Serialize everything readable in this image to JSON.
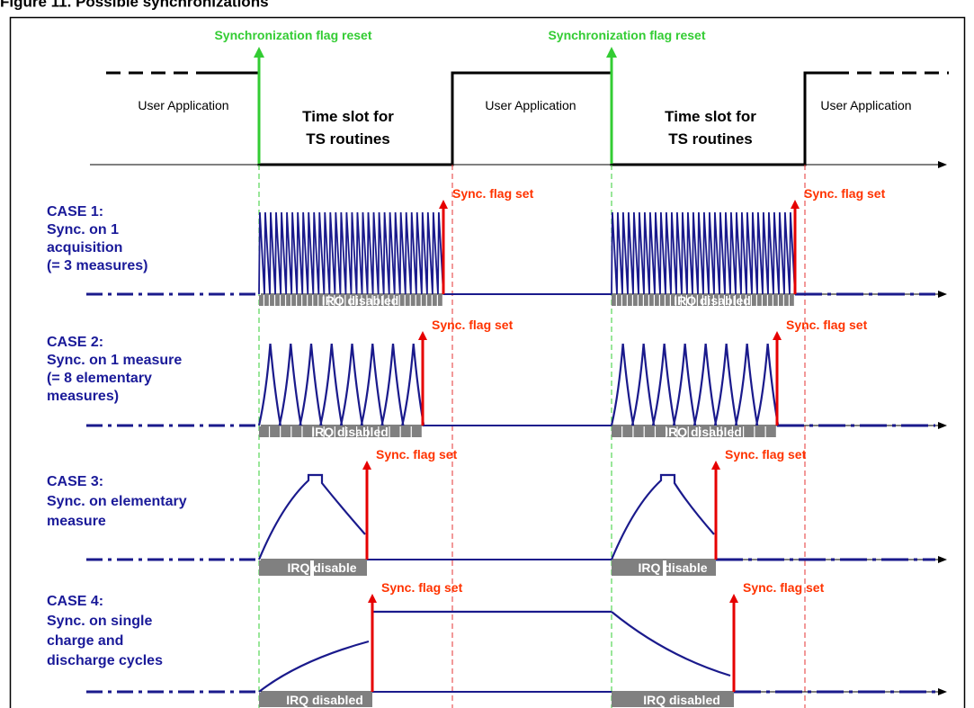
{
  "figure_title": "Figure 11.   Possible synchronizations",
  "top": {
    "sync_reset_label": "Synchronization flag reset",
    "user_app_label": "User Application",
    "time_slot_line1": "Time slot for",
    "time_slot_line2": "TS routines"
  },
  "sync_set_label": "Sync. flag set",
  "cases": [
    {
      "lines": [
        "CASE 1:",
        "Sync. on 1",
        "acquisition",
        "(= 3 measures)"
      ],
      "irq": "IRQ disabled"
    },
    {
      "lines": [
        "CASE 2:",
        "Sync. on 1 measure",
        "(= 8 elementary",
        "measures)"
      ],
      "irq": "IRQ disabled"
    },
    {
      "lines": [
        "CASE 3:",
        "Sync. on elementary",
        "measure"
      ],
      "irq": "IRQ disable"
    },
    {
      "lines": [
        "CASE 4:",
        "Sync. on single",
        "charge and",
        "discharge cycles"
      ],
      "irq": "IRQ disabled"
    }
  ],
  "colors": {
    "green": "#33cc33",
    "red": "#e60000",
    "sync_text": "#ff3300",
    "case_text": "#1a1a99",
    "signal": "#1a1a8c",
    "irq_box": "#808080"
  }
}
